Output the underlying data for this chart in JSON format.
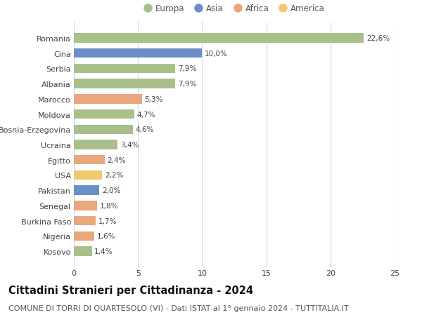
{
  "categories": [
    "Romania",
    "Cina",
    "Serbia",
    "Albania",
    "Marocco",
    "Moldova",
    "Bosnia-Erzegovina",
    "Ucraina",
    "Egitto",
    "USA",
    "Pakistan",
    "Senegal",
    "Burkina Faso",
    "Nigeria",
    "Kosovo"
  ],
  "values": [
    22.6,
    10.0,
    7.9,
    7.9,
    5.3,
    4.7,
    4.6,
    3.4,
    2.4,
    2.2,
    2.0,
    1.8,
    1.7,
    1.6,
    1.4
  ],
  "labels": [
    "22,6%",
    "10,0%",
    "7,9%",
    "7,9%",
    "5,3%",
    "4,7%",
    "4,6%",
    "3,4%",
    "2,4%",
    "2,2%",
    "2,0%",
    "1,8%",
    "1,7%",
    "1,6%",
    "1,4%"
  ],
  "colors": [
    "#a8bf8a",
    "#6a8fc8",
    "#a8bf8a",
    "#a8bf8a",
    "#e8a87c",
    "#a8bf8a",
    "#a8bf8a",
    "#a8bf8a",
    "#e8a87c",
    "#f0c96e",
    "#6a8fc8",
    "#e8a87c",
    "#e8a87c",
    "#e8a87c",
    "#a8bf8a"
  ],
  "legend_labels": [
    "Europa",
    "Asia",
    "Africa",
    "America"
  ],
  "legend_colors": [
    "#a8bf8a",
    "#6a8fc8",
    "#e8a87c",
    "#f0c96e"
  ],
  "title": "Cittadini Stranieri per Cittadinanza - 2024",
  "subtitle": "COMUNE DI TORRI DI QUARTESOLO (VI) - Dati ISTAT al 1° gennaio 2024 - TUTTITALIA.IT",
  "xlim": [
    0,
    25
  ],
  "xticks": [
    0,
    5,
    10,
    15,
    20,
    25
  ],
  "background_color": "#ffffff",
  "grid_color": "#d8d8d8",
  "bar_height": 0.62,
  "title_fontsize": 10.5,
  "subtitle_fontsize": 8,
  "label_fontsize": 7.5,
  "tick_fontsize": 8,
  "legend_fontsize": 8.5
}
